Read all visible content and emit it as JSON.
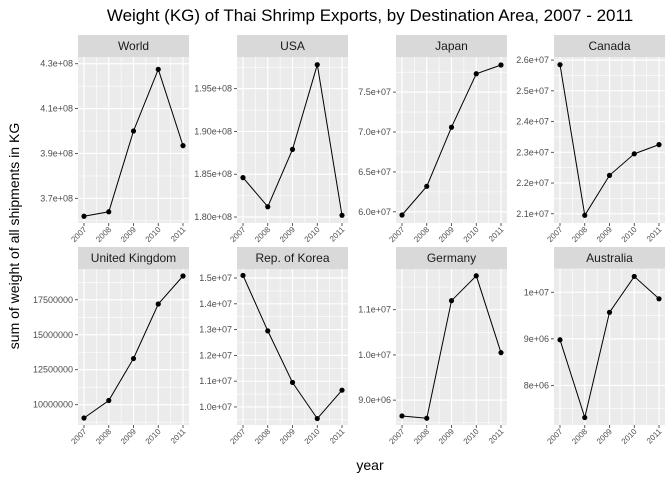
{
  "chart_data": {
    "type": "line",
    "title": "Weight (KG) of Thai Shrimp Exports, by Destination Area, 2007 - 2011",
    "xlabel": "year",
    "ylabel": "sum of weight of all shipments in KG",
    "x": [
      "2007",
      "2008",
      "2009",
      "2010",
      "2011"
    ],
    "grid": true,
    "facet_layout": "2 rows x 4 columns, free y scales",
    "colors": {
      "panel_background": "#ebebeb",
      "strip_background": "#d9d9d9",
      "gridline": "#ffffff",
      "line": "#000000",
      "point": "#000000"
    },
    "panels": [
      {
        "name": "World",
        "values": [
          362000000,
          364000000,
          400000000,
          427500000,
          393500000
        ],
        "ylim": [
          359000000,
          433000000
        ],
        "y_ticks": [
          370000000,
          390000000,
          410000000,
          430000000
        ],
        "y_tick_labels": [
          "3.7e+08",
          "3.9e+08",
          "4.1e+08",
          "4.3e+08"
        ]
      },
      {
        "name": "USA",
        "values": [
          184600000,
          181200000,
          187900000,
          197800000,
          180200000
        ],
        "ylim": [
          179300000,
          198700000
        ],
        "y_ticks": [
          180000000,
          185000000,
          190000000,
          195000000
        ],
        "y_tick_labels": [
          "1.80e+08",
          "1.85e+08",
          "1.90e+08",
          "1.95e+08"
        ]
      },
      {
        "name": "Japan",
        "values": [
          59600000,
          63200000,
          70600000,
          77300000,
          78400000
        ],
        "ylim": [
          58600000,
          79400000
        ],
        "y_ticks": [
          60000000,
          65000000,
          70000000,
          75000000
        ],
        "y_tick_labels": [
          "6.0e+07",
          "6.5e+07",
          "7.0e+07",
          "7.5e+07"
        ]
      },
      {
        "name": "Canada",
        "values": [
          25850000,
          20950000,
          22250000,
          22950000,
          23250000
        ],
        "ylim": [
          20700000,
          26100000
        ],
        "y_ticks": [
          21000000,
          22000000,
          23000000,
          24000000,
          25000000,
          26000000
        ],
        "y_tick_labels": [
          "2.1e+07",
          "2.2e+07",
          "2.3e+07",
          "2.4e+07",
          "2.5e+07",
          "2.6e+07"
        ]
      },
      {
        "name": "United Kingdom",
        "values": [
          9050000,
          10300000,
          13300000,
          17200000,
          19200000
        ],
        "ylim": [
          8550000,
          19700000
        ],
        "y_ticks": [
          10000000,
          12500000,
          15000000,
          17500000
        ],
        "y_tick_labels": [
          "10000000",
          "12500000",
          "15000000",
          "17500000"
        ]
      },
      {
        "name": "Rep. of Korea",
        "values": [
          15100000,
          12950000,
          10950000,
          9550000,
          10650000
        ],
        "ylim": [
          9300000,
          15350000
        ],
        "y_ticks": [
          10000000,
          11000000,
          12000000,
          13000000,
          14000000,
          15000000
        ],
        "y_tick_labels": [
          "1.0e+07",
          "1.1e+07",
          "1.2e+07",
          "1.3e+07",
          "1.4e+07",
          "1.5e+07"
        ]
      },
      {
        "name": "Germany",
        "values": [
          8650000,
          8600000,
          11200000,
          11750000,
          10050000
        ],
        "ylim": [
          8450000,
          11900000
        ],
        "y_ticks": [
          9000000,
          10000000,
          11000000
        ],
        "y_tick_labels": [
          "9.0e+06",
          "1.0e+07",
          "1.1e+07"
        ]
      },
      {
        "name": "Australia",
        "values": [
          8980000,
          7310000,
          9570000,
          10340000,
          9860000
        ],
        "ylim": [
          7150000,
          10500000
        ],
        "y_ticks": [
          8000000,
          9000000,
          10000000
        ],
        "y_tick_labels": [
          "8e+06",
          "9e+06",
          "1e+07"
        ]
      }
    ]
  }
}
